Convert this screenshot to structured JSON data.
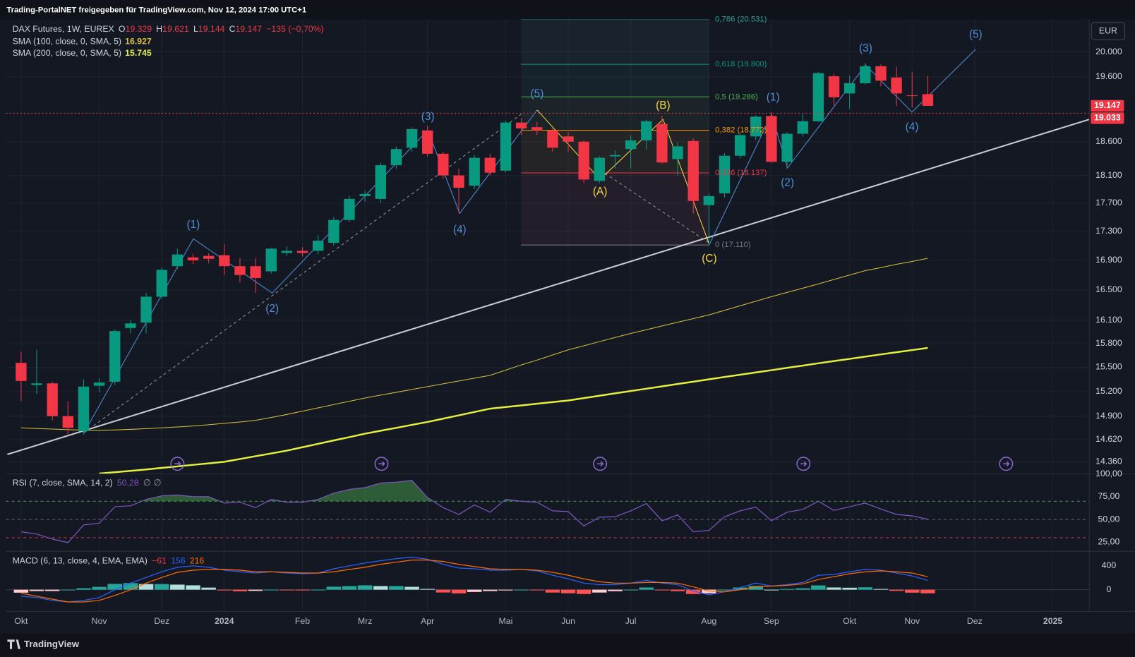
{
  "header": "Trading-PortalNET freigegeben für TradingView.com, Nov 12, 2024 17:00 UTC+1",
  "logo": "TradingView",
  "chart_data": [
    {
      "type": "candlestick",
      "title": "DAX Futures, 1W, EUREX",
      "ohlc_legend": [
        {
          "key": "O",
          "text": "19.329"
        },
        {
          "key": "H",
          "text": "19.621"
        },
        {
          "key": "L",
          "text": "19.144"
        },
        {
          "key": "C",
          "text": "19.147"
        }
      ],
      "change": "−135 (−0,70%)",
      "currency": "EUR",
      "categories": [
        "Okt",
        null,
        null,
        null,
        null,
        "Nov",
        null,
        null,
        null,
        "Dez",
        null,
        null,
        null,
        "2024",
        null,
        null,
        null,
        null,
        "Feb",
        null,
        null,
        null,
        "Mrz",
        null,
        null,
        null,
        "Apr",
        null,
        null,
        null,
        null,
        "Mai",
        null,
        null,
        null,
        "Jun",
        null,
        null,
        null,
        "Jul",
        null,
        null,
        null,
        null,
        "Aug",
        null,
        null,
        null,
        "Sep",
        null,
        null,
        null,
        null,
        "Okt",
        null,
        null,
        null,
        "Nov",
        null,
        null,
        null,
        "Dez",
        null,
        null,
        null,
        null,
        "2025",
        null,
        null
      ],
      "open": [
        15555,
        15280,
        15300,
        14900,
        14720,
        15270,
        15320,
        16000,
        16070,
        16410,
        16820,
        16940,
        16960,
        16970,
        16820,
        16820,
        16750,
        17000,
        17030,
        17030,
        17140,
        17460,
        17800,
        17760,
        18250,
        18510,
        18770,
        18420,
        18100,
        17950,
        18360,
        18170,
        18890,
        18820,
        18770,
        18680,
        18600,
        18020,
        18380,
        18490,
        18620,
        18870,
        18340,
        18610,
        17670,
        17840,
        18390,
        18680,
        18990,
        18300,
        18720,
        18910,
        19610,
        19340,
        19500,
        19770,
        19590,
        19310,
        19329,
        null,
        null,
        null,
        null,
        null,
        null,
        null,
        null,
        null,
        null
      ],
      "high": [
        15700,
        15720,
        15320,
        15080,
        15350,
        15360,
        15980,
        16100,
        16460,
        16800,
        17060,
        16990,
        17000,
        17120,
        16930,
        16930,
        17070,
        17090,
        17080,
        17250,
        17500,
        17810,
        17880,
        18290,
        18530,
        18820,
        18840,
        18450,
        18200,
        18400,
        18420,
        18920,
        18960,
        18900,
        18800,
        18740,
        18620,
        18380,
        18470,
        18700,
        18930,
        18990,
        18600,
        18650,
        17840,
        18430,
        18720,
        19000,
        19050,
        18740,
        19020,
        19680,
        19650,
        19620,
        19820,
        19800,
        19760,
        19680,
        19621,
        null,
        null,
        null,
        null,
        null,
        null,
        null,
        null,
        null,
        null
      ],
      "low": [
        15080,
        15170,
        14850,
        14680,
        14680,
        15190,
        15280,
        15930,
        15930,
        16380,
        16780,
        16850,
        16860,
        16700,
        16600,
        16460,
        16720,
        16960,
        16950,
        16980,
        17100,
        17430,
        17720,
        17700,
        18200,
        18450,
        18380,
        18050,
        17560,
        17900,
        18100,
        18140,
        18700,
        18700,
        18450,
        18450,
        17990,
        17990,
        18200,
        18200,
        18480,
        18270,
        18100,
        17550,
        17110,
        17780,
        18350,
        18620,
        18280,
        18200,
        18680,
        18900,
        19150,
        19100,
        19480,
        19450,
        19140,
        19120,
        19144,
        null,
        null,
        null,
        null,
        null,
        null,
        null,
        null,
        null,
        null
      ],
      "close": [
        15330,
        15300,
        14900,
        14760,
        15260,
        15310,
        15960,
        16060,
        16410,
        16770,
        16980,
        16900,
        16920,
        16820,
        16700,
        16660,
        17060,
        17030,
        17000,
        17170,
        17460,
        17760,
        17830,
        18250,
        18490,
        18790,
        18420,
        18100,
        17920,
        18360,
        18140,
        18890,
        18800,
        18770,
        18510,
        18600,
        18040,
        18360,
        18400,
        18620,
        18910,
        18290,
        18530,
        17730,
        17800,
        18390,
        18700,
        18980,
        18300,
        18720,
        18910,
        19660,
        19280,
        19500,
        19770,
        19540,
        19340,
        19300,
        19147,
        null,
        null,
        null,
        null,
        null,
        null,
        null,
        null,
        null,
        null
      ],
      "colors": {
        "up": "#089981",
        "down": "#f23645"
      },
      "series": [
        {
          "name": "SMA (100, close, 0, SMA, 5)",
          "legend_value": "16.927",
          "color": "#d9c13f",
          "width": 1,
          "values": [
            14760,
            14752,
            14745,
            14738,
            14732,
            14730,
            14735,
            14742,
            14750,
            14760,
            14770,
            14782,
            14797,
            14813,
            14830,
            14850,
            14884,
            14920,
            14960,
            15000,
            15040,
            15080,
            15120,
            15155,
            15190,
            15225,
            15260,
            15295,
            15330,
            15365,
            15400,
            15465,
            15530,
            15590,
            15655,
            15720,
            15772,
            15825,
            15878,
            15930,
            15978,
            16026,
            16074,
            16122,
            16170,
            16230,
            16290,
            16350,
            16410,
            16467,
            16523,
            16580,
            16640,
            16700,
            16760,
            16800,
            16845,
            16885,
            16927,
            null,
            null,
            null,
            null,
            null,
            null,
            null,
            null,
            null,
            null
          ]
        },
        {
          "name": "SMA (200, close, 0, SMA, 5)",
          "legend_value": "15.745",
          "color": "#e4f03c",
          "width": 2.4,
          "values": [
            null,
            null,
            null,
            null,
            null,
            14225,
            14240,
            14255,
            14272,
            14290,
            14307,
            14325,
            14342,
            14360,
            14392,
            14425,
            14457,
            14490,
            14530,
            14570,
            14610,
            14650,
            14690,
            14725,
            14760,
            14795,
            14830,
            14870,
            14910,
            14950,
            14990,
            15010,
            15030,
            15050,
            15070,
            15090,
            15119,
            15148,
            15177,
            15206,
            15234,
            15263,
            15292,
            15321,
            15350,
            15379,
            15407,
            15436,
            15464,
            15493,
            15521,
            15550,
            15578,
            15606,
            15634,
            15662,
            15690,
            15717,
            15745,
            null,
            null,
            null,
            null,
            null,
            null,
            null,
            null,
            null,
            null
          ]
        }
      ],
      "ylim": [
        14220,
        20530
      ],
      "log_scale": true,
      "yticks": [
        {
          "value": 20000,
          "label": "20.000"
        },
        {
          "value": 19600,
          "label": "19.600"
        },
        {
          "value": 18600,
          "label": "18.600"
        },
        {
          "value": 18100,
          "label": "18.100"
        },
        {
          "value": 17700,
          "label": "17.700"
        },
        {
          "value": 17300,
          "label": "17.300"
        },
        {
          "value": 16900,
          "label": "16.900"
        },
        {
          "value": 16500,
          "label": "16.500"
        },
        {
          "value": 16100,
          "label": "16.100"
        },
        {
          "value": 15800,
          "label": "15.800"
        },
        {
          "value": 15500,
          "label": "15.500"
        },
        {
          "value": 15200,
          "label": "15.200"
        },
        {
          "value": 14900,
          "label": "14.900"
        },
        {
          "value": 14620,
          "label": "14.620"
        },
        {
          "value": 14360,
          "label": "14.360"
        }
      ],
      "grid": true,
      "price_labels": [
        {
          "value": 19147,
          "label": "19.147"
        },
        {
          "value": 19033,
          "label": "19.033"
        }
      ],
      "price_label_color": "#f23645",
      "fib_levels": [
        {
          "value": 20531,
          "label": "0,786 (20.531)",
          "color": "#26a69a"
        },
        {
          "value": 19800,
          "label": "0,618 (19.800)",
          "color": "#089981"
        },
        {
          "value": 19286,
          "label": "0,5 (19.286)",
          "color": "#4caf50"
        },
        {
          "value": 18772,
          "label": "0,382 (18.772)",
          "color": "#ff9800"
        },
        {
          "value": 18137,
          "label": "0,236 (18.137)",
          "color": "#f23645"
        },
        {
          "value": 17110,
          "label": "0 (17.110)",
          "color": "#787b86"
        }
      ],
      "wave_labels": [
        "(1)",
        "(2)",
        "(3)",
        "(4)",
        "(5)",
        "(A)",
        "(B)",
        "(C)",
        "(1)",
        "(2)",
        "(3)",
        "(4)",
        "(5)"
      ]
    },
    {
      "type": "line",
      "title": "RSI (7, close, SMA, 14, 2)",
      "legend_values": [
        "50,28",
        "∅",
        "∅"
      ],
      "color": "#7e57c2",
      "values": [
        36.5,
        34,
        28.5,
        24.6,
        44,
        46,
        64,
        65,
        72,
        76,
        77,
        75,
        75,
        68,
        69,
        63,
        72,
        69,
        69,
        72,
        79,
        83,
        85,
        90,
        91,
        93,
        74,
        63,
        55.5,
        66,
        58,
        72,
        70,
        69,
        59.5,
        58.7,
        43,
        52.4,
        53,
        59.5,
        67.5,
        48.5,
        55,
        36.5,
        38,
        53,
        59.5,
        63.5,
        48.5,
        58,
        61,
        70,
        60,
        64,
        68,
        61.5,
        55.5,
        54,
        50.28,
        null,
        null,
        null,
        null,
        null,
        null,
        null,
        null,
        null,
        null
      ],
      "ylim": [
        15,
        100
      ],
      "yticks": [
        {
          "value": 100,
          "label": "100,00"
        },
        {
          "value": 75,
          "label": "75,00"
        },
        {
          "value": 50,
          "label": "50,00"
        },
        {
          "value": 25,
          "label": "25,00"
        }
      ],
      "levels": [
        {
          "value": 70,
          "color": "#4caf50"
        },
        {
          "value": 50,
          "color": "#787b86"
        },
        {
          "value": 30,
          "color": "#f23645"
        }
      ],
      "overbought_fill": "#4caf50"
    },
    {
      "type": "macd",
      "title": "MACD (6, 13, close, 4, EMA, EMA)",
      "legend_values": [
        {
          "text": "−61",
          "color": "#f23645"
        },
        {
          "text": "156",
          "color": "#2962ff"
        },
        {
          "text": "216",
          "color": "#ff6d00"
        }
      ],
      "histogram": {
        "values": [
          -50,
          -23,
          -22,
          0,
          25,
          47,
          97,
          110,
          95,
          95,
          85,
          73,
          35,
          -13,
          -27,
          -20,
          0,
          -10,
          -13,
          0,
          50,
          60,
          73,
          60,
          60,
          48,
          13,
          -47,
          -62,
          -38,
          -23,
          -13,
          0,
          -12,
          -48,
          -60,
          -72,
          -48,
          -25,
          0,
          37,
          -11,
          -25,
          -72,
          -61,
          0,
          36,
          62,
          0,
          13,
          24,
          72,
          37,
          33,
          40,
          12,
          -20,
          -50,
          -61,
          null,
          null,
          null,
          null,
          null,
          null,
          null,
          null,
          null,
          null
        ],
        "colors": {
          "up_rising": "#26a69a",
          "up_falling": "#b2dfdb",
          "down_falling": "#ff5252",
          "down_rising": "#ffcdd2"
        }
      },
      "series": [
        {
          "color": "#2962ff",
          "values": [
            -110,
            -133,
            -180,
            -205,
            -180,
            -133,
            0,
            110,
            205,
            300,
            375,
            400,
            375,
            327,
            300,
            280,
            300,
            280,
            267,
            280,
            350,
            400,
            448,
            485,
            520,
            545,
            510,
            425,
            363,
            350,
            327,
            327,
            340,
            315,
            242,
            182,
            110,
            85,
            85,
            110,
            158,
            110,
            85,
            -24,
            -85,
            -36,
            36,
            110,
            60,
            85,
            121,
            242,
            255,
            300,
            340,
            327,
            280,
            230,
            156,
            null,
            null,
            null,
            null,
            null,
            null,
            null,
            null,
            null,
            null
          ]
        },
        {
          "color": "#ff6d00",
          "values": [
            -60,
            -110,
            -158,
            -205,
            -205,
            -180,
            -97,
            0,
            110,
            205,
            290,
            327,
            340,
            340,
            327,
            300,
            300,
            290,
            280,
            280,
            300,
            340,
            375,
            425,
            460,
            497,
            497,
            472,
            425,
            388,
            350,
            340,
            340,
            327,
            290,
            242,
            182,
            133,
            110,
            110,
            121,
            121,
            110,
            48,
            -24,
            -36,
            0,
            48,
            60,
            72,
            97,
            170,
            218,
            267,
            300,
            315,
            300,
            280,
            216,
            null,
            null,
            null,
            null,
            null,
            null,
            null,
            null,
            null,
            null
          ]
        }
      ],
      "ylim": [
        -364,
        642
      ],
      "yticks": [
        0,
        400
      ]
    }
  ]
}
